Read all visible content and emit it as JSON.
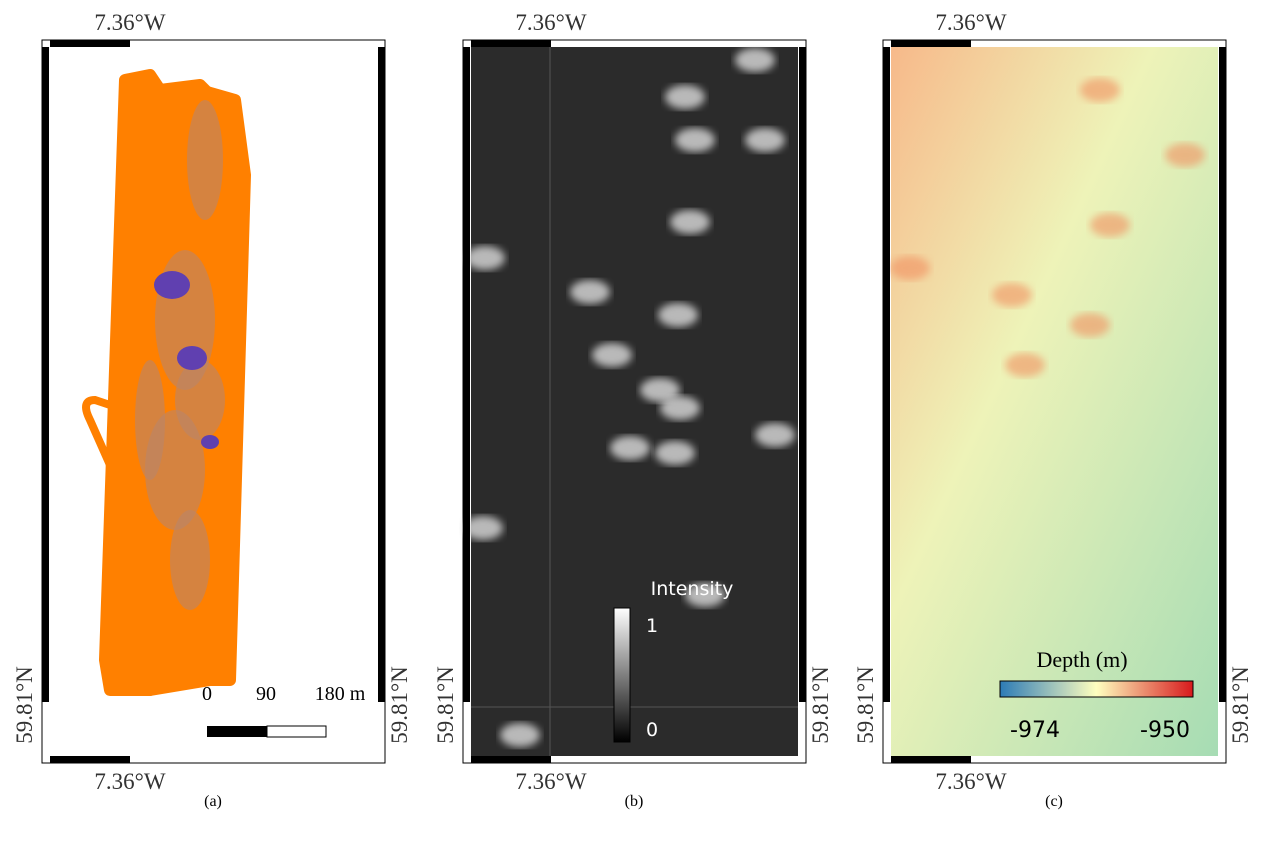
{
  "panels": [
    {
      "top_lon": "7.36°W",
      "bottom_lon": "7.36°W",
      "left_lat": "59.81°N",
      "right_lat": "59.81°N",
      "caption": "(a)",
      "scale_bar": {
        "labels": [
          "0",
          "90",
          "180 m"
        ]
      }
    },
    {
      "top_lon": "7.36°W",
      "bottom_lon": "7.36°W",
      "left_lat": "59.81°N",
      "right_lat": "59.81°N",
      "caption": "(b)",
      "colorbar": {
        "title": "Intensity",
        "max_label": "1",
        "min_label": "0"
      }
    },
    {
      "top_lon": "7.36°W",
      "bottom_lon": "7.36°W",
      "left_lat": "59.81°N",
      "right_lat": "59.81°N",
      "caption": "(c)",
      "colorbar": {
        "title": "Depth (m)",
        "min_label": "-974",
        "max_label": "-950"
      }
    }
  ]
}
